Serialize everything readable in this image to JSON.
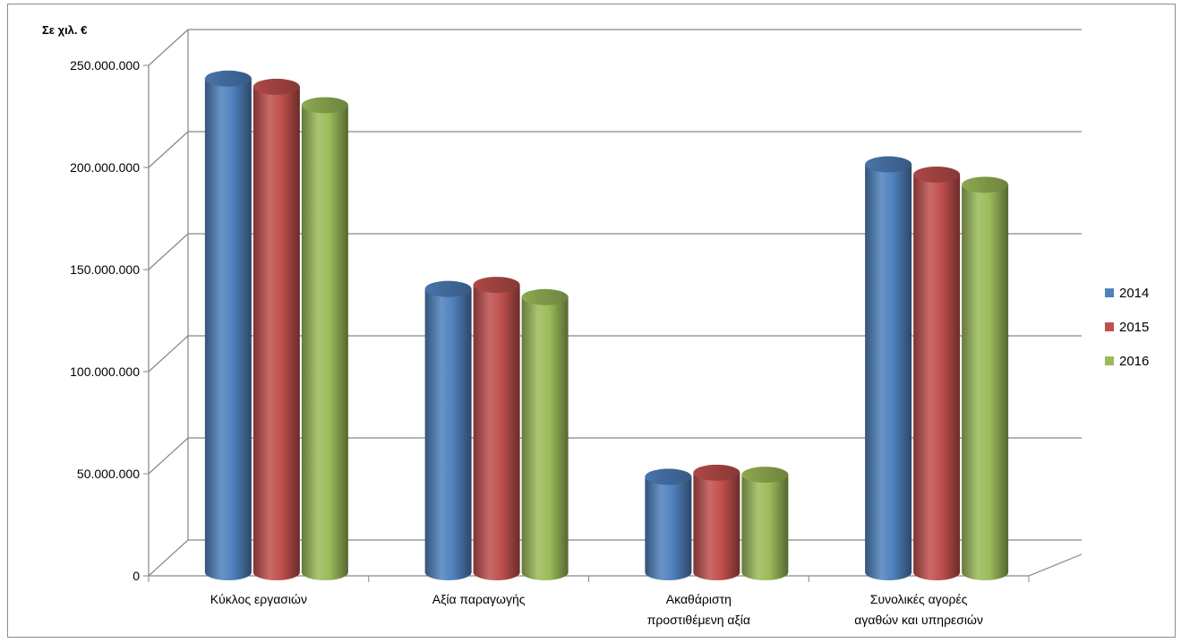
{
  "chart_data": {
    "type": "bar",
    "style": "3d-cylinder",
    "unit_label": "Σε χιλ. €",
    "categories": [
      [
        "Κύκλος εργασιών"
      ],
      [
        "Αξία παραγωγής"
      ],
      [
        "Ακαθάριστη",
        "προστιθέμενη αξία"
      ],
      [
        "Συνολικές αγορές",
        "αγαθών και υπηρεσιών"
      ]
    ],
    "series": [
      {
        "name": "2014",
        "color": "#4f81bd",
        "values": [
          240000000,
          137000000,
          45000000,
          198000000
        ]
      },
      {
        "name": "2015",
        "color": "#c0504d",
        "values": [
          236000000,
          139000000,
          47000000,
          193000000
        ]
      },
      {
        "name": "2016",
        "color": "#9bbb59",
        "values": [
          227000000,
          133000000,
          46000000,
          188000000
        ]
      }
    ],
    "ylim": [
      0,
      250000000
    ],
    "y_ticks": [
      "0",
      "50.000.000",
      "100.000.000",
      "150.000.000",
      "200.000.000",
      "250.000.000"
    ],
    "grid": true,
    "legend_position": "right"
  }
}
